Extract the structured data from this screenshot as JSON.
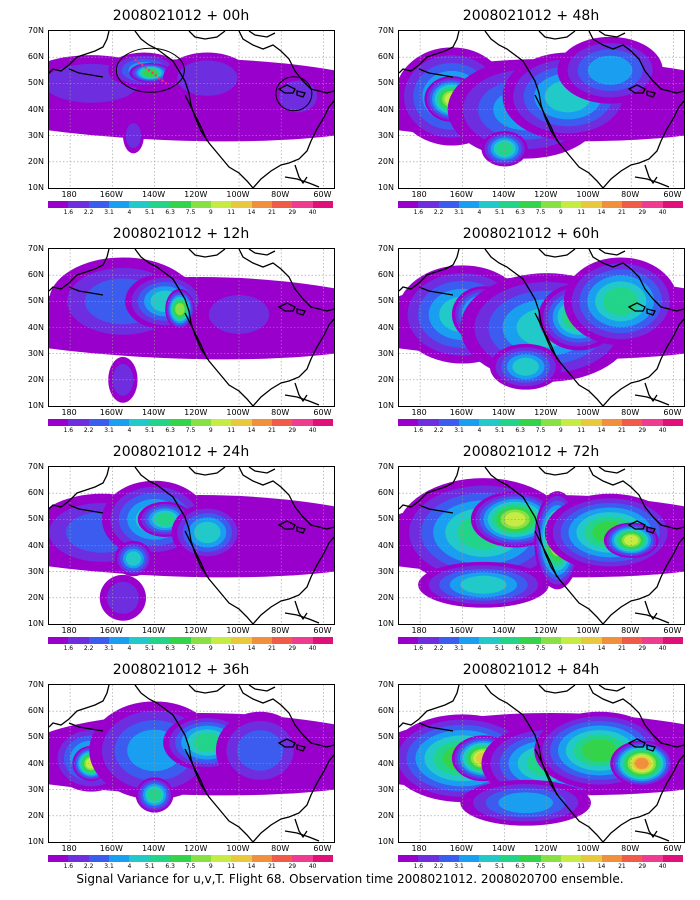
{
  "panels": [
    {
      "title": "2008021012 + 00h",
      "level": 0
    },
    {
      "title": "2008021012 + 48h",
      "level": 4
    },
    {
      "title": "2008021012 + 12h",
      "level": 1
    },
    {
      "title": "2008021012 + 60h",
      "level": 5
    },
    {
      "title": "2008021012 + 24h",
      "level": 2
    },
    {
      "title": "2008021012 + 72h",
      "level": 6
    },
    {
      "title": "2008021012 + 36h",
      "level": 3
    },
    {
      "title": "2008021012 + 84h",
      "level": 7
    }
  ],
  "lat_labels": [
    "70N",
    "60N",
    "50N",
    "40N",
    "30N",
    "20N",
    "10N"
  ],
  "lon_labels": [
    "180",
    "160W",
    "140W",
    "120W",
    "100W",
    "80W",
    "60W"
  ],
  "colorbar_labels": [
    "1.6",
    "2.2",
    "3.1",
    "4",
    "5.1",
    "6.3",
    "7.5",
    "9",
    "11",
    "14",
    "21",
    "29",
    "40"
  ],
  "colorbar_colors": [
    "#9900cc",
    "#6f2de0",
    "#3c5cf0",
    "#1a9ff0",
    "#22c9c9",
    "#22d48a",
    "#33d44a",
    "#88e044",
    "#c6ec44",
    "#e8c83c",
    "#f0903c",
    "#f05a48",
    "#f03c90",
    "#e0107a"
  ],
  "footer": "Signal Variance for u,v,T. Flight 68. Observation time 2008021012. 2008020700 ensemble."
}
